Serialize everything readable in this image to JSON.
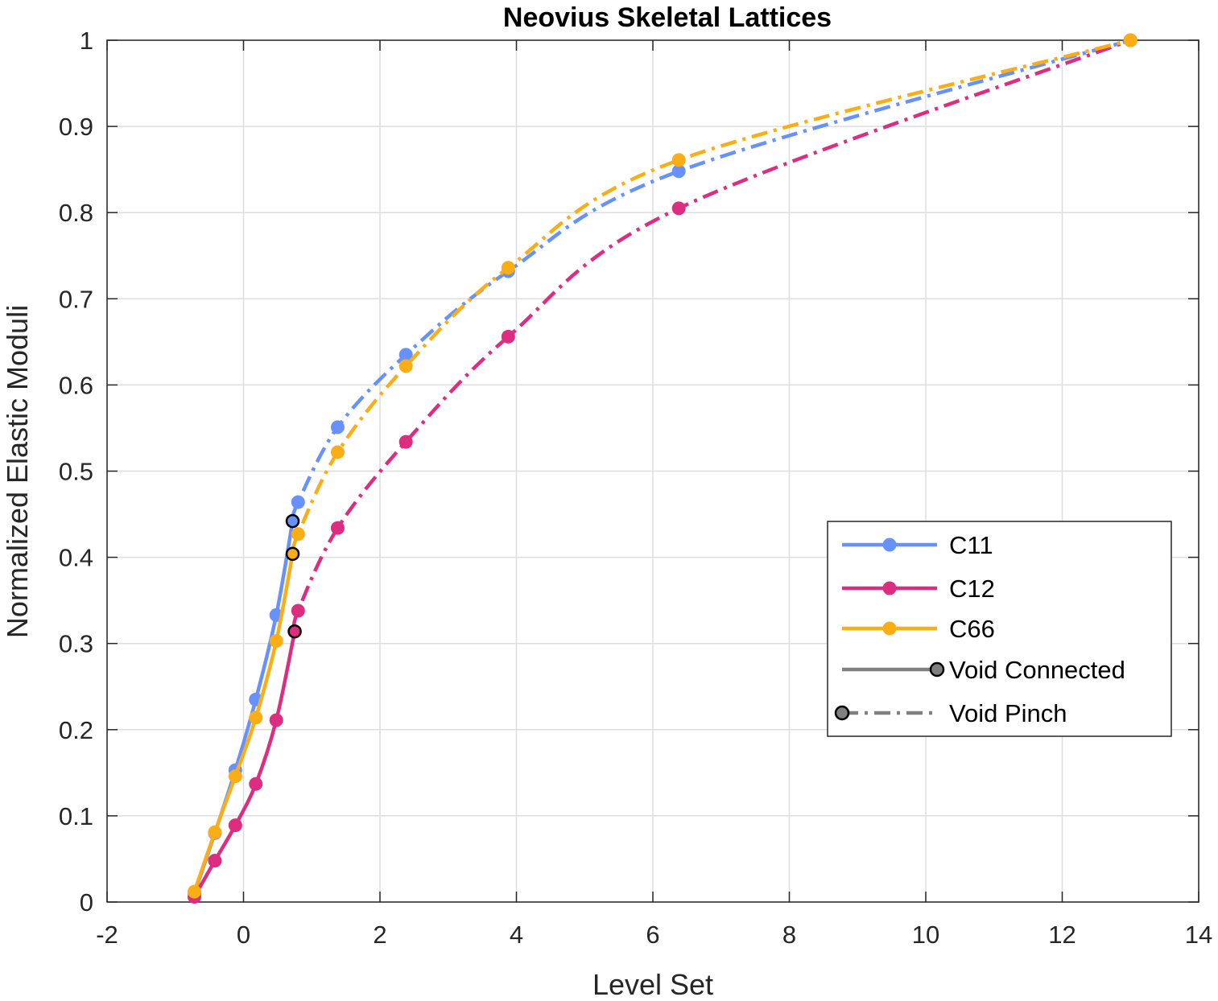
{
  "chart_data": {
    "type": "line",
    "title": "Neovius Skeletal Lattices",
    "xlabel": "Level Set",
    "ylabel": "Normalized Elastic Moduli",
    "xlim": [
      -2,
      14
    ],
    "ylim": [
      0,
      1
    ],
    "xticks": [
      -2,
      0,
      2,
      4,
      6,
      8,
      10,
      12,
      14
    ],
    "yticks": [
      0,
      0.1,
      0.2,
      0.3,
      0.4,
      0.5,
      0.6,
      0.7,
      0.8,
      0.9,
      1
    ],
    "xtick_labels": [
      "-2",
      "0",
      "2",
      "4",
      "6",
      "8",
      "10",
      "12",
      "14"
    ],
    "ytick_labels": [
      "0",
      "0.1",
      "0.2",
      "0.3",
      "0.4",
      "0.5",
      "0.6",
      "0.7",
      "0.8",
      "0.9",
      "1"
    ],
    "grid": true,
    "legend_position": "center-right",
    "series": [
      {
        "name": "C11",
        "color": "#6691ff",
        "connected": {
          "x": [
            -0.72,
            -0.42,
            -0.12,
            0.18,
            0.48,
            0.72
          ],
          "y": [
            0.01,
            0.08,
            0.153,
            0.235,
            0.333,
            0.442
          ]
        },
        "pinch": {
          "x": [
            0.72,
            0.8,
            1.38,
            2.38,
            3.88,
            6.38,
            13.0
          ],
          "y": [
            0.442,
            0.464,
            0.551,
            0.635,
            0.732,
            0.848,
            1.0
          ]
        },
        "transition": {
          "x": 0.72,
          "y": 0.442
        }
      },
      {
        "name": "C12",
        "color": "#de2d80",
        "connected": {
          "x": [
            -0.72,
            -0.42,
            -0.12,
            0.18,
            0.48,
            0.75
          ],
          "y": [
            0.006,
            0.048,
            0.089,
            0.137,
            0.211,
            0.314
          ]
        },
        "pinch": {
          "x": [
            0.75,
            0.8,
            1.38,
            2.38,
            3.88,
            6.38,
            13.0
          ],
          "y": [
            0.314,
            0.338,
            0.434,
            0.534,
            0.656,
            0.805,
            1.0
          ]
        },
        "transition": {
          "x": 0.75,
          "y": 0.314
        }
      },
      {
        "name": "C66",
        "color": "#fbad16",
        "connected": {
          "x": [
            -0.72,
            -0.42,
            -0.12,
            0.18,
            0.48,
            0.72
          ],
          "y": [
            0.012,
            0.081,
            0.146,
            0.214,
            0.303,
            0.404
          ]
        },
        "pinch": {
          "x": [
            0.72,
            0.8,
            1.38,
            2.38,
            3.88,
            6.38,
            13.0
          ],
          "y": [
            0.404,
            0.427,
            0.522,
            0.622,
            0.736,
            0.861,
            1.0
          ]
        },
        "transition": {
          "x": 0.72,
          "y": 0.404
        }
      }
    ],
    "legend": [
      {
        "label": "C11",
        "kind": "series",
        "color": "#6691ff"
      },
      {
        "label": "C12",
        "kind": "series",
        "color": "#de2d80"
      },
      {
        "label": "C66",
        "kind": "series",
        "color": "#fbad16"
      },
      {
        "label": "Void Connected",
        "kind": "solid",
        "color": "#808080"
      },
      {
        "label": "Void Pinch",
        "kind": "dashdot",
        "color": "#808080"
      }
    ]
  }
}
